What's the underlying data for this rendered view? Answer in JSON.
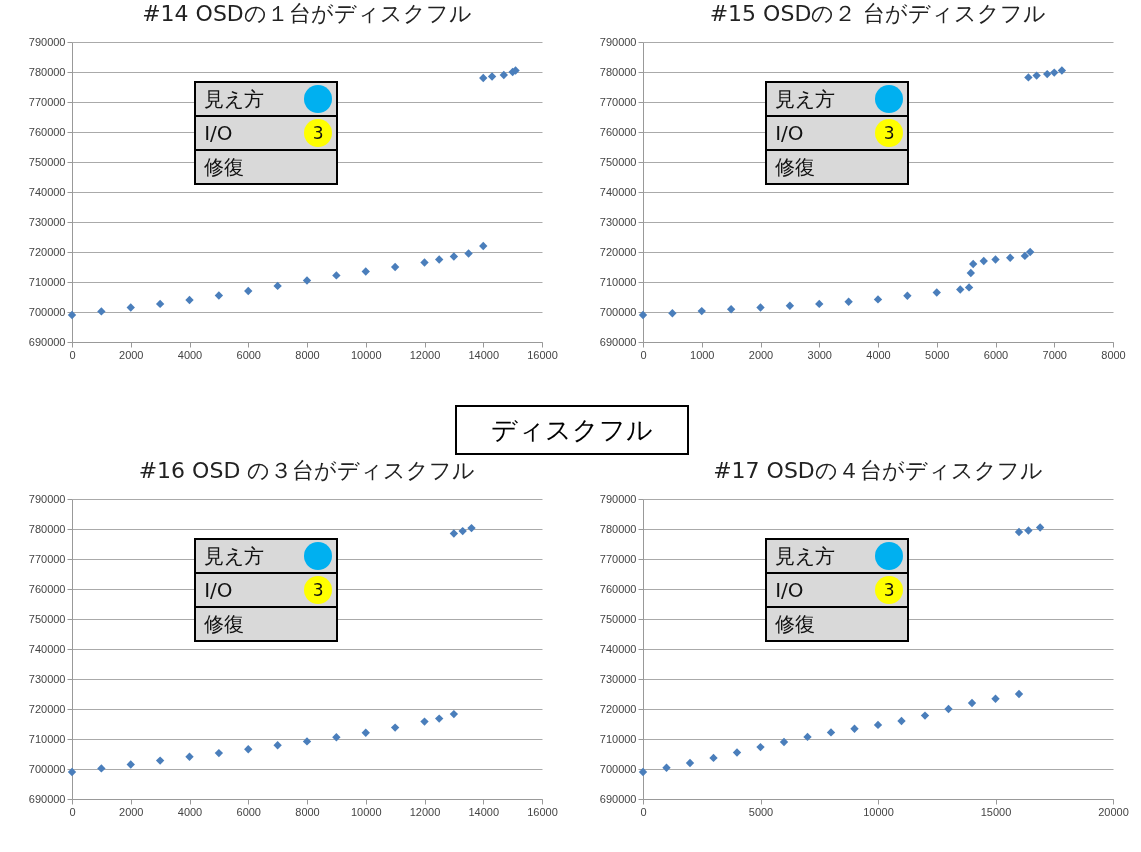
{
  "chart_data": [
    {
      "type": "scatter",
      "title": "#14 OSDの１台がディスクフル",
      "annotations": [
        "見え方",
        "I/O",
        "3",
        "修復",
        "ディスクフル"
      ],
      "xlim": [
        0,
        16000
      ],
      "xticks": [
        0,
        2000,
        4000,
        6000,
        8000,
        10000,
        12000,
        14000,
        16000
      ],
      "ylim": [
        690000,
        790000
      ],
      "yticks": [
        690000,
        700000,
        710000,
        720000,
        730000,
        740000,
        750000,
        760000,
        770000,
        780000,
        790000
      ],
      "grid": "y",
      "marker": "diamond",
      "series": [
        {
          "color": "#4a7ebb",
          "x": [
            0,
            1000,
            2000,
            3000,
            4000,
            5000,
            6000,
            7000,
            8000,
            9000,
            10000,
            11000,
            12000,
            12500,
            13000,
            13500,
            14000,
            14000,
            14300,
            14700,
            15000,
            15100
          ],
          "values": [
            699000,
            700200,
            701500,
            702700,
            704000,
            705500,
            707000,
            708700,
            710500,
            712200,
            713500,
            715000,
            716500,
            717500,
            718500,
            719500,
            722000,
            778000,
            778500,
            779000,
            780000,
            780500
          ]
        }
      ]
    },
    {
      "type": "scatter",
      "title": "#15 OSDの２ 台がディスクフル",
      "annotations": [
        "見え方",
        "I/O",
        "3",
        "修復"
      ],
      "xlim": [
        0,
        8000
      ],
      "xticks": [
        0,
        1000,
        2000,
        3000,
        4000,
        5000,
        6000,
        7000,
        8000
      ],
      "ylim": [
        690000,
        790000
      ],
      "yticks": [
        690000,
        700000,
        710000,
        720000,
        730000,
        740000,
        750000,
        760000,
        770000,
        780000,
        790000
      ],
      "grid": "y",
      "marker": "diamond",
      "series": [
        {
          "color": "#4a7ebb",
          "x": [
            0,
            500,
            1000,
            1500,
            2000,
            2500,
            3000,
            3500,
            4000,
            4500,
            5000,
            5400,
            5550,
            5580,
            5620,
            5800,
            6000,
            6250,
            6500,
            6590,
            6560,
            6700,
            6880,
            7000,
            7130
          ],
          "values": [
            699000,
            699600,
            700300,
            700900,
            701500,
            702100,
            702700,
            703400,
            704200,
            705400,
            706500,
            707500,
            708200,
            713000,
            716000,
            717000,
            717500,
            718100,
            718700,
            720000,
            778200,
            778800,
            779300,
            779800,
            780500
          ]
        }
      ]
    },
    {
      "type": "scatter",
      "title": "#16 OSD の３台がディスクフル",
      "annotations": [
        "見え方",
        "I/O",
        "3",
        "修復"
      ],
      "xlim": [
        0,
        16000
      ],
      "xticks": [
        0,
        2000,
        4000,
        6000,
        8000,
        10000,
        12000,
        14000,
        16000
      ],
      "ylim": [
        690000,
        790000
      ],
      "yticks": [
        690000,
        700000,
        710000,
        720000,
        730000,
        740000,
        750000,
        760000,
        770000,
        780000,
        790000
      ],
      "grid": "y",
      "marker": "diamond",
      "series": [
        {
          "color": "#4a7ebb",
          "x": [
            0,
            1000,
            2000,
            3000,
            4000,
            5000,
            6000,
            7000,
            8000,
            9000,
            10000,
            11000,
            12000,
            12500,
            13000,
            13000,
            13300,
            13600
          ],
          "values": [
            699000,
            700200,
            701500,
            702800,
            704100,
            705300,
            706600,
            707900,
            709200,
            710600,
            712100,
            713800,
            715800,
            716800,
            718300,
            778500,
            779300,
            780300
          ]
        }
      ]
    },
    {
      "type": "scatter",
      "title": "#17 OSDの４台がディスクフル",
      "annotations": [
        "見え方",
        "I/O",
        "3",
        "修復"
      ],
      "xlim": [
        0,
        20000
      ],
      "xticks": [
        0,
        5000,
        10000,
        15000,
        20000
      ],
      "ylim": [
        690000,
        790000
      ],
      "yticks": [
        690000,
        700000,
        710000,
        720000,
        730000,
        740000,
        750000,
        760000,
        770000,
        780000,
        790000
      ],
      "grid": "y",
      "marker": "diamond",
      "series": [
        {
          "color": "#4a7ebb",
          "x": [
            0,
            1000,
            2000,
            3000,
            4000,
            5000,
            6000,
            7000,
            8000,
            9000,
            10000,
            11000,
            12000,
            13000,
            14000,
            15000,
            16000,
            16000,
            16400,
            16900
          ],
          "values": [
            699000,
            700400,
            702000,
            703700,
            705500,
            707300,
            709000,
            710700,
            712200,
            713400,
            714700,
            716000,
            717800,
            720000,
            722000,
            723400,
            725000,
            779000,
            779500,
            780500
          ]
        }
      ]
    }
  ]
}
